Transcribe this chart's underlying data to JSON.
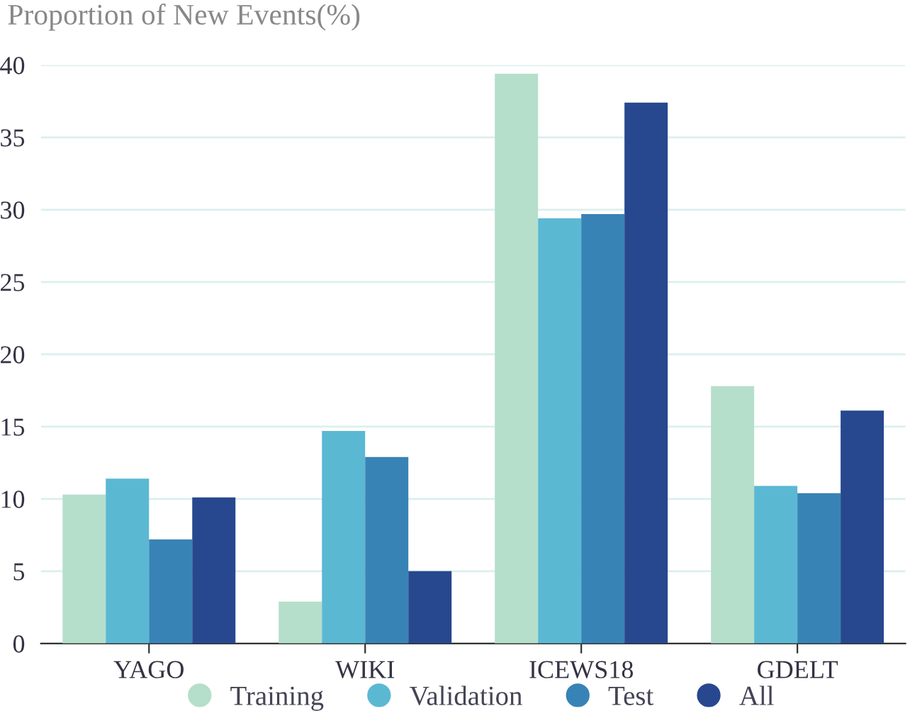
{
  "chart_data": {
    "type": "bar",
    "title": "Proportion of New Events(%)",
    "categories": [
      "YAGO",
      "WIKI",
      "ICEWS18",
      "GDELT"
    ],
    "series": [
      {
        "name": "Training",
        "color": "#b5dfcb",
        "values": [
          10.3,
          2.9,
          39.4,
          17.8
        ]
      },
      {
        "name": "Validation",
        "color": "#5bb8d3",
        "values": [
          11.4,
          14.7,
          29.4,
          10.9
        ]
      },
      {
        "name": "Test",
        "color": "#3883b5",
        "values": [
          7.2,
          12.9,
          29.7,
          10.4
        ]
      },
      {
        "name": "All",
        "color": "#27488f",
        "values": [
          10.1,
          5.0,
          37.4,
          16.1
        ]
      }
    ],
    "ylim": [
      0,
      40
    ],
    "yticks": [
      0,
      5,
      10,
      15,
      20,
      25,
      30,
      35,
      40
    ],
    "grid": "y",
    "legend": "bottom"
  }
}
